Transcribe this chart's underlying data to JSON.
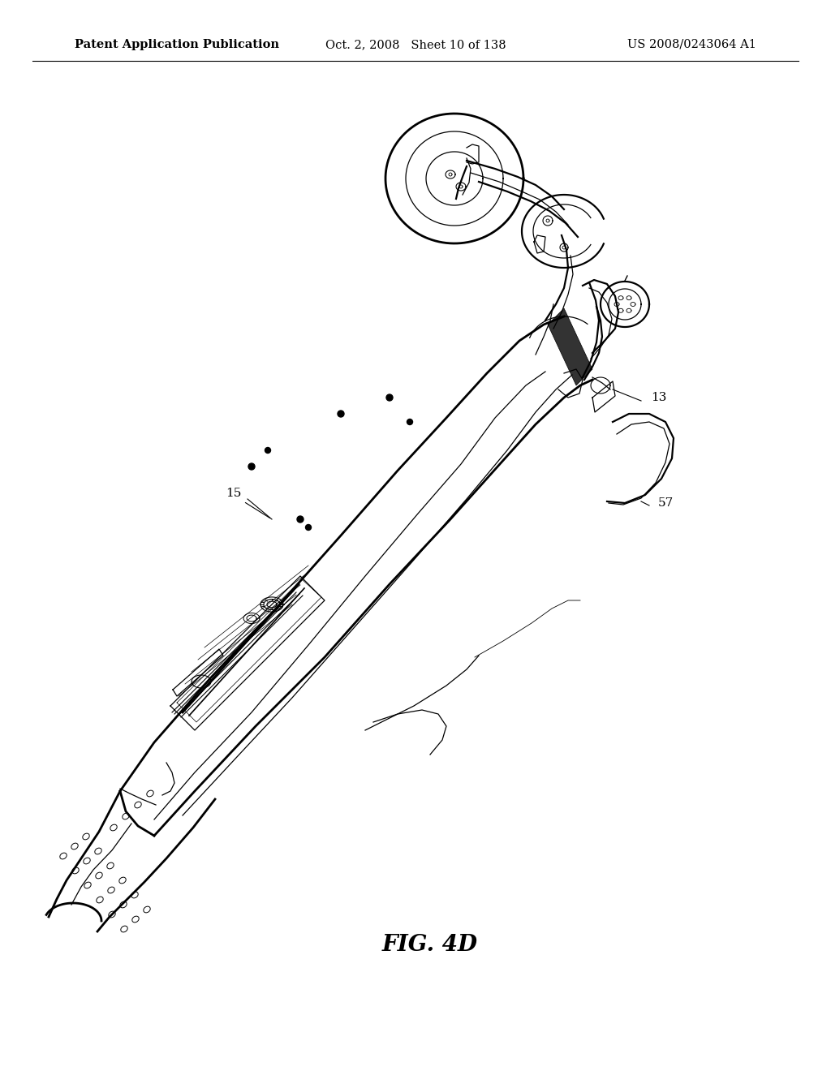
{
  "background_color": "#ffffff",
  "header_left": "Patent Application Publication",
  "header_center": "Oct. 2, 2008   Sheet 10 of 138",
  "header_right": "US 2008/0243064 A1",
  "figure_label": "FIG. 4D",
  "header_fontsize": 10.5,
  "label_fontsize": 11,
  "fig_label_fontsize": 20,
  "color": "#000000",
  "lw_main": 1.6,
  "lw_thin": 0.9,
  "lw_thick": 2.0,
  "lw_very_thin": 0.6
}
